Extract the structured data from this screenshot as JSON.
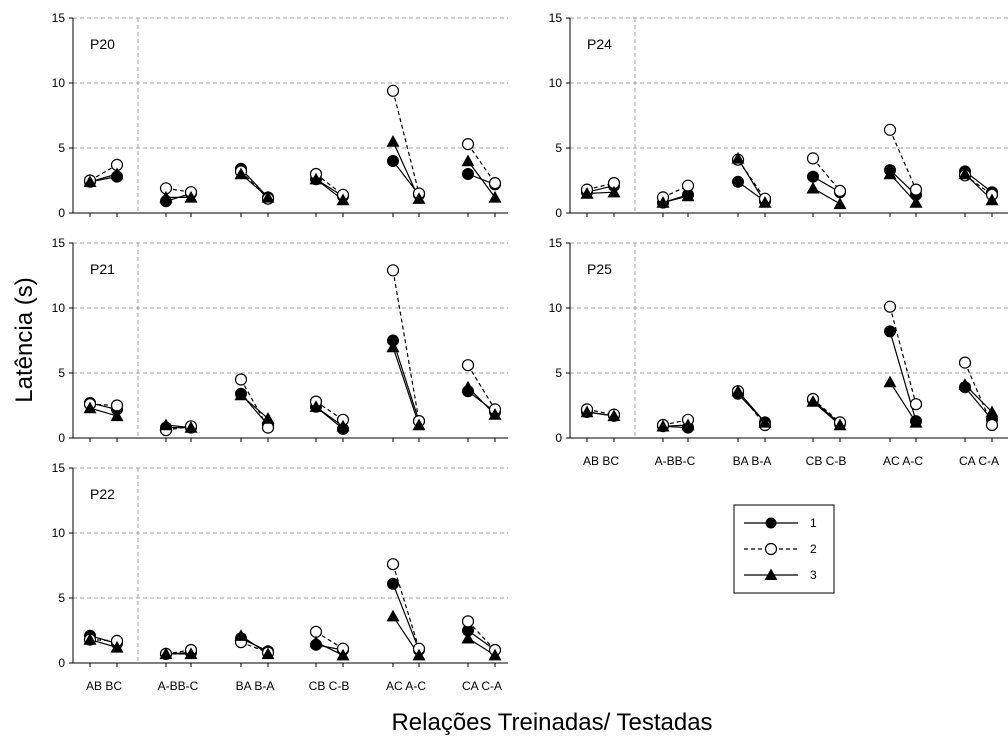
{
  "chart_data": {
    "type": "line",
    "ylabel": "Latência (s)",
    "xlabel": "Relações Treinadas/ Testadas",
    "ylim": [
      0,
      15
    ],
    "yticks": [
      0,
      5,
      10,
      15
    ],
    "x_positions": [
      "AB",
      "BC",
      "A-B",
      "B-C",
      "BA",
      "B-A",
      "CB",
      "C-B",
      "AC",
      "A-C",
      "CA",
      "C-A"
    ],
    "x_tick_labels": [
      "AB  BC",
      "A-BB-C",
      "BA B-A",
      "CB C-B",
      "AC  A-C",
      "CA  C-A"
    ],
    "grid": "horizontal dashed at 5, 10, 15",
    "legend": {
      "placement": "lower-right",
      "entries": [
        {
          "series": "1",
          "marker": "filled-circle",
          "line": "solid"
        },
        {
          "series": "2",
          "marker": "open-circle",
          "line": "dashed"
        },
        {
          "series": "3",
          "marker": "filled-triangle",
          "line": "solid"
        }
      ]
    },
    "panels": [
      {
        "label": "P20",
        "series": [
          {
            "name": "1",
            "values": [
              2.4,
              2.8,
              0.9,
              1.5,
              3.4,
              1.2,
              2.6,
              1.3,
              4.0,
              1.4,
              3.0,
              2.2
            ]
          },
          {
            "name": "2",
            "values": [
              2.5,
              3.7,
              1.9,
              1.6,
              3.2,
              1.1,
              3.0,
              1.4,
              9.4,
              1.5,
              5.3,
              2.3
            ]
          },
          {
            "name": "3",
            "values": [
              2.4,
              3.0,
              1.2,
              1.2,
              3.0,
              1.2,
              2.6,
              1.0,
              5.5,
              1.1,
              4.0,
              1.2
            ]
          }
        ]
      },
      {
        "label": "P24",
        "series": [
          {
            "name": "1",
            "values": [
              1.6,
              2.1,
              0.8,
              1.4,
              2.4,
              0.9,
              2.8,
              1.6,
              3.3,
              1.4,
              3.2,
              1.6
            ]
          },
          {
            "name": "2",
            "values": [
              1.8,
              2.3,
              1.2,
              2.1,
              4.1,
              1.1,
              4.2,
              1.7,
              6.4,
              1.8,
              2.9,
              1.4
            ]
          },
          {
            "name": "3",
            "values": [
              1.5,
              1.6,
              0.8,
              1.3,
              4.2,
              0.8,
              1.9,
              0.7,
              3.0,
              0.8,
              3.0,
              1.0
            ]
          }
        ]
      },
      {
        "label": "P21",
        "series": [
          {
            "name": "1",
            "values": [
              2.7,
              2.2,
              0.8,
              0.8,
              3.4,
              1.0,
              2.4,
              0.7,
              7.5,
              1.3,
              3.6,
              2.0
            ]
          },
          {
            "name": "2",
            "values": [
              2.6,
              2.5,
              0.6,
              0.9,
              4.5,
              0.8,
              2.8,
              1.4,
              12.9,
              1.3,
              5.6,
              2.2
            ]
          },
          {
            "name": "3",
            "values": [
              2.3,
              1.7,
              1.0,
              0.8,
              3.3,
              1.5,
              2.4,
              0.9,
              7.0,
              1.0,
              3.9,
              1.8
            ]
          }
        ]
      },
      {
        "label": "P25",
        "series": [
          {
            "name": "1",
            "values": [
              2.0,
              1.7,
              0.9,
              0.8,
              3.4,
              1.2,
              2.9,
              1.1,
              8.2,
              1.3,
              3.9,
              1.4
            ]
          },
          {
            "name": "2",
            "values": [
              2.2,
              1.8,
              1.0,
              1.4,
              3.6,
              1.0,
              3.0,
              1.2,
              10.1,
              2.6,
              5.8,
              1.0
            ]
          },
          {
            "name": "3",
            "values": [
              2.0,
              1.7,
              0.9,
              1.0,
              3.6,
              1.2,
              2.8,
              1.0,
              4.3,
              1.2,
              4.1,
              2.0
            ]
          }
        ]
      },
      {
        "label": "P22",
        "series": [
          {
            "name": "1",
            "values": [
              2.1,
              1.5,
              0.7,
              0.8,
              1.9,
              0.9,
              1.4,
              1.0,
              6.1,
              1.0,
              2.5,
              1.0
            ]
          },
          {
            "name": "2",
            "values": [
              1.8,
              1.7,
              0.7,
              1.0,
              1.6,
              0.8,
              2.4,
              1.1,
              7.6,
              1.1,
              3.2,
              1.0
            ]
          },
          {
            "name": "3",
            "values": [
              1.8,
              1.2,
              0.7,
              0.7,
              2.1,
              0.7,
              1.6,
              0.6,
              3.6,
              0.6,
              1.9,
              0.6
            ]
          }
        ]
      }
    ]
  }
}
